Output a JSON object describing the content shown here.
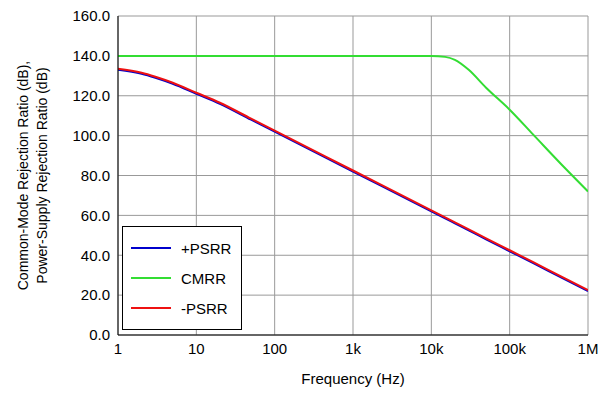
{
  "chart_data": {
    "type": "line",
    "xlabel": "Frequency (Hz)",
    "ylabel": [
      "Common-Mode Rejection Ratio (dB),",
      "Power-Supply Rejection Ratio (dB)"
    ],
    "log": "x",
    "grid": true,
    "legend": "lower left",
    "x": [
      1,
      2,
      3,
      5,
      10,
      20,
      50,
      100,
      1000,
      10000,
      15000,
      20000,
      30000,
      50000,
      100000,
      200000,
      500000,
      1000000
    ],
    "xlim": [
      1,
      1000000
    ],
    "xticks": [
      1,
      10,
      100,
      {
        "value": 1000,
        "label": "1k"
      },
      {
        "value": 10000,
        "label": "10k"
      },
      {
        "value": 100000,
        "label": "100k"
      },
      {
        "value": 1000000,
        "label": "1M"
      }
    ],
    "ylim": [
      0,
      160
    ],
    "yticks": [
      {
        "value": 0,
        "label": "0.0"
      },
      {
        "value": 20,
        "label": "20.0"
      },
      {
        "value": 40,
        "label": "40.0"
      },
      {
        "value": 60,
        "label": "60.0"
      },
      {
        "value": 80,
        "label": "80.0"
      },
      {
        "value": 100,
        "label": "100.0"
      },
      {
        "value": 120,
        "label": "120.0"
      },
      {
        "value": 140,
        "label": "140.0"
      },
      {
        "value": 160,
        "label": "160.0"
      }
    ],
    "series": [
      {
        "name": "+PSRR",
        "color": "#0000cc",
        "values": [
          133,
          131,
          129,
          126,
          121,
          116,
          108,
          102,
          82,
          62,
          58.5,
          56,
          52.5,
          48,
          42,
          36,
          28,
          22
        ]
      },
      {
        "name": "CMRR",
        "color": "#33dd33",
        "values": [
          140,
          140,
          140,
          140,
          140,
          140,
          140,
          140,
          140,
          140,
          139.5,
          138,
          133,
          124,
          113,
          100.5,
          84,
          72
        ]
      },
      {
        "name": "-PSRR",
        "color": "#ee1111",
        "values": [
          133.5,
          131.5,
          129.5,
          126.5,
          121.5,
          116.5,
          108.5,
          102.5,
          82.5,
          62.5,
          59,
          56.5,
          53,
          48.5,
          42.5,
          36.5,
          28.5,
          22.5
        ]
      }
    ]
  }
}
